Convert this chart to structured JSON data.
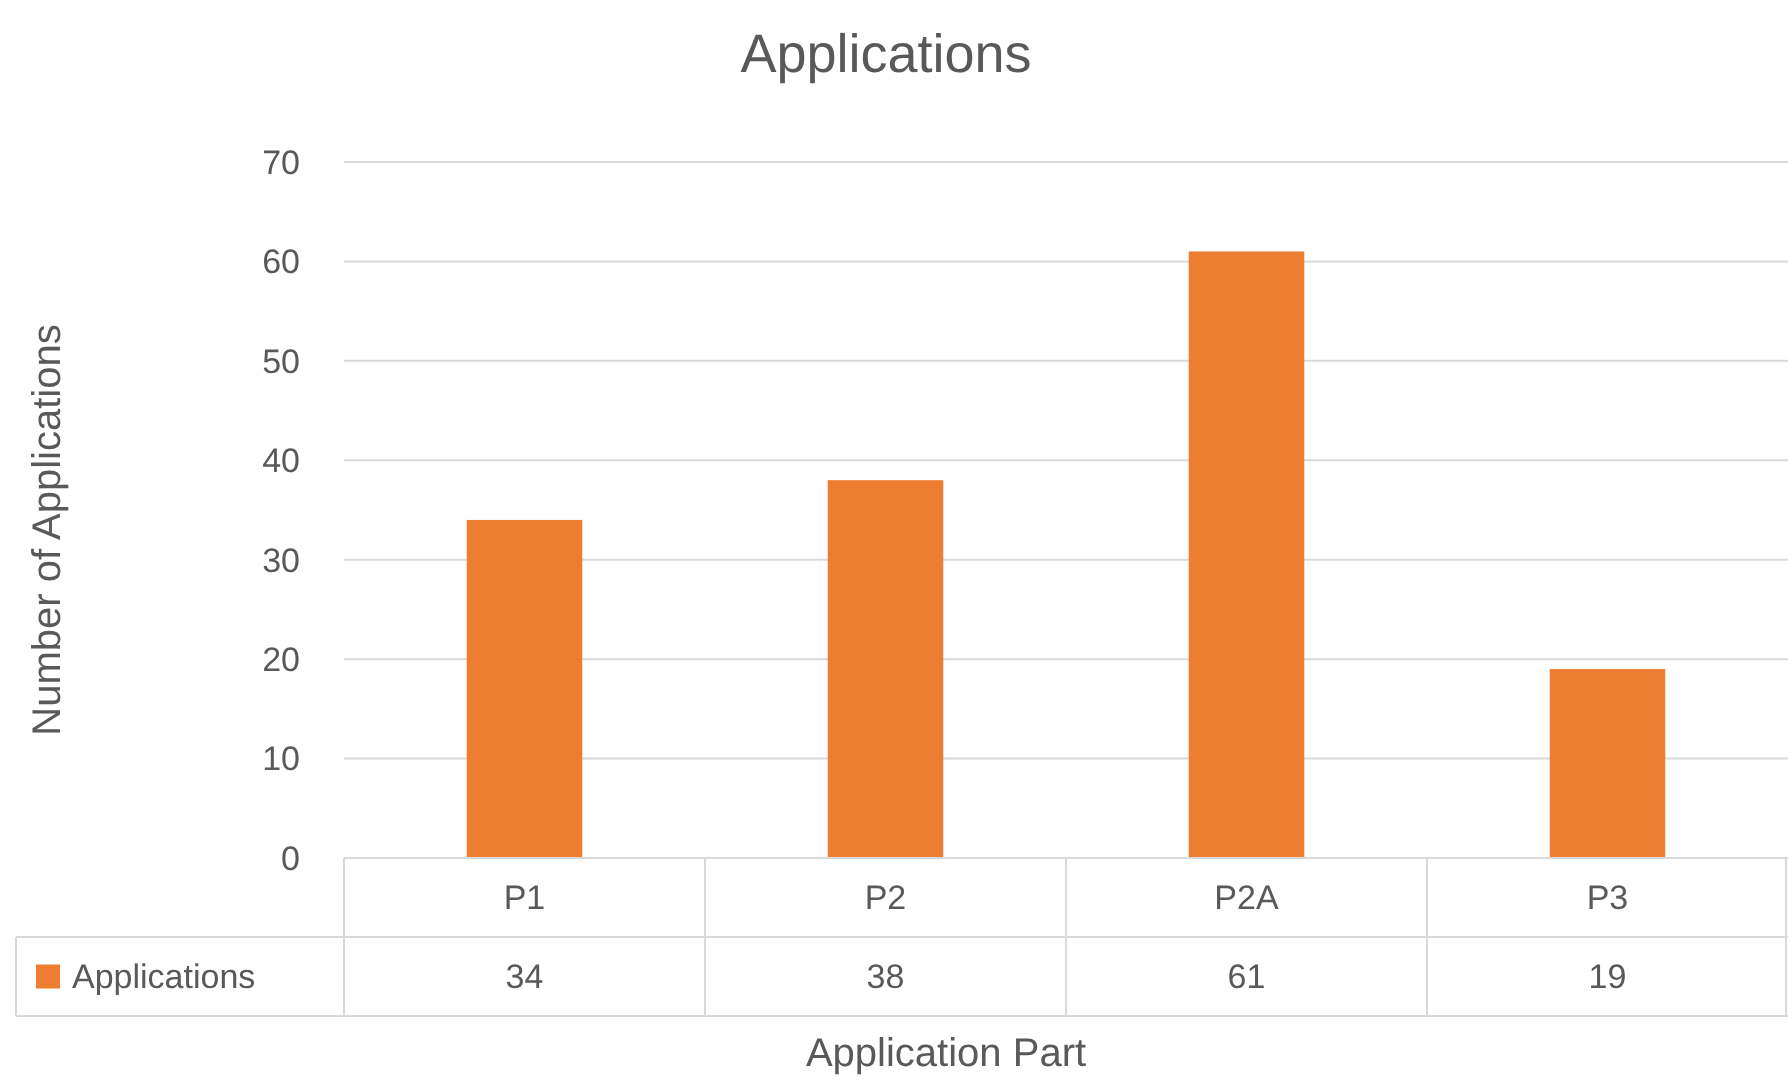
{
  "chart_data": {
    "type": "bar",
    "title": "Applications",
    "xlabel": "Application Part",
    "ylabel": "Number of Applications",
    "categories": [
      "P1",
      "P2",
      "P2A",
      "P3"
    ],
    "series": [
      {
        "name": "Applications",
        "color": "#ed7d31",
        "values": [
          34,
          38,
          61,
          19
        ]
      }
    ],
    "ylim": [
      0,
      70
    ],
    "yticks": [
      0,
      10,
      20,
      30,
      40,
      50,
      60,
      70
    ],
    "grid": "y",
    "data_labels": true,
    "legend": "bottom left"
  }
}
